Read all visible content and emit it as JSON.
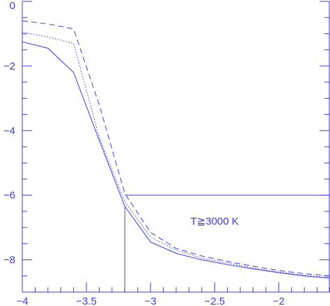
{
  "chart_data": {
    "type": "line",
    "title": "",
    "xlabel": "",
    "ylabel": "",
    "xlim": [
      -4,
      -1.6
    ],
    "ylim": [
      -9,
      0
    ],
    "y_reversed": true,
    "grid": false,
    "x_ticks": [
      {
        "value": -4,
        "label": "−4"
      },
      {
        "value": -3.5,
        "label": "−3.5"
      },
      {
        "value": -3,
        "label": "−3"
      },
      {
        "value": -2.5,
        "label": "−2.5"
      },
      {
        "value": -2,
        "label": "−2"
      }
    ],
    "y_ticks": [
      {
        "value": 0,
        "label": "0"
      },
      {
        "value": -2,
        "label": "−2"
      },
      {
        "value": -4,
        "label": "−4"
      },
      {
        "value": -6,
        "label": "−6"
      },
      {
        "value": -8,
        "label": "−8"
      }
    ],
    "series": [
      {
        "style": "solid",
        "x": [
          -4,
          -3.8,
          -3.6,
          -3.4,
          -3.2,
          -3.0,
          -2.8,
          -2.6,
          -2.4,
          -2.2,
          -2.0,
          -1.8,
          -1.6
        ],
        "y": [
          -1.25,
          -1.45,
          -2.2,
          -4.3,
          -6.35,
          -7.45,
          -7.8,
          -8.0,
          -8.15,
          -8.28,
          -8.4,
          -8.5,
          -8.57
        ]
      },
      {
        "style": "dotted",
        "x": [
          -4,
          -3.8,
          -3.6,
          -3.4,
          -3.2,
          -3.0,
          -2.8,
          -2.6,
          -2.4,
          -2.2,
          -2.0,
          -1.8,
          -1.6
        ],
        "y": [
          -0.95,
          -1.1,
          -1.3,
          -4.2,
          -6.2,
          -7.3,
          -7.7,
          -7.95,
          -8.1,
          -8.25,
          -8.38,
          -8.48,
          -8.55
        ]
      },
      {
        "style": "dashed",
        "x": [
          -4,
          -3.8,
          -3.6,
          -3.4,
          -3.2,
          -3.0,
          -2.8,
          -2.6,
          -2.4,
          -2.2,
          -2.0,
          -1.8,
          -1.6
        ],
        "y": [
          -0.6,
          -0.7,
          -0.85,
          -3.2,
          -5.95,
          -7.15,
          -7.65,
          -7.88,
          -8.05,
          -8.2,
          -8.33,
          -8.43,
          -8.5
        ]
      }
    ],
    "threshold": {
      "x": -3.2,
      "y": -6.0
    },
    "annotation": {
      "text": "T≧3000 K",
      "x": -2.5,
      "y": -6.8
    },
    "colors": {
      "line": "#4a4ae0",
      "axis": "#3b3bd6"
    }
  }
}
